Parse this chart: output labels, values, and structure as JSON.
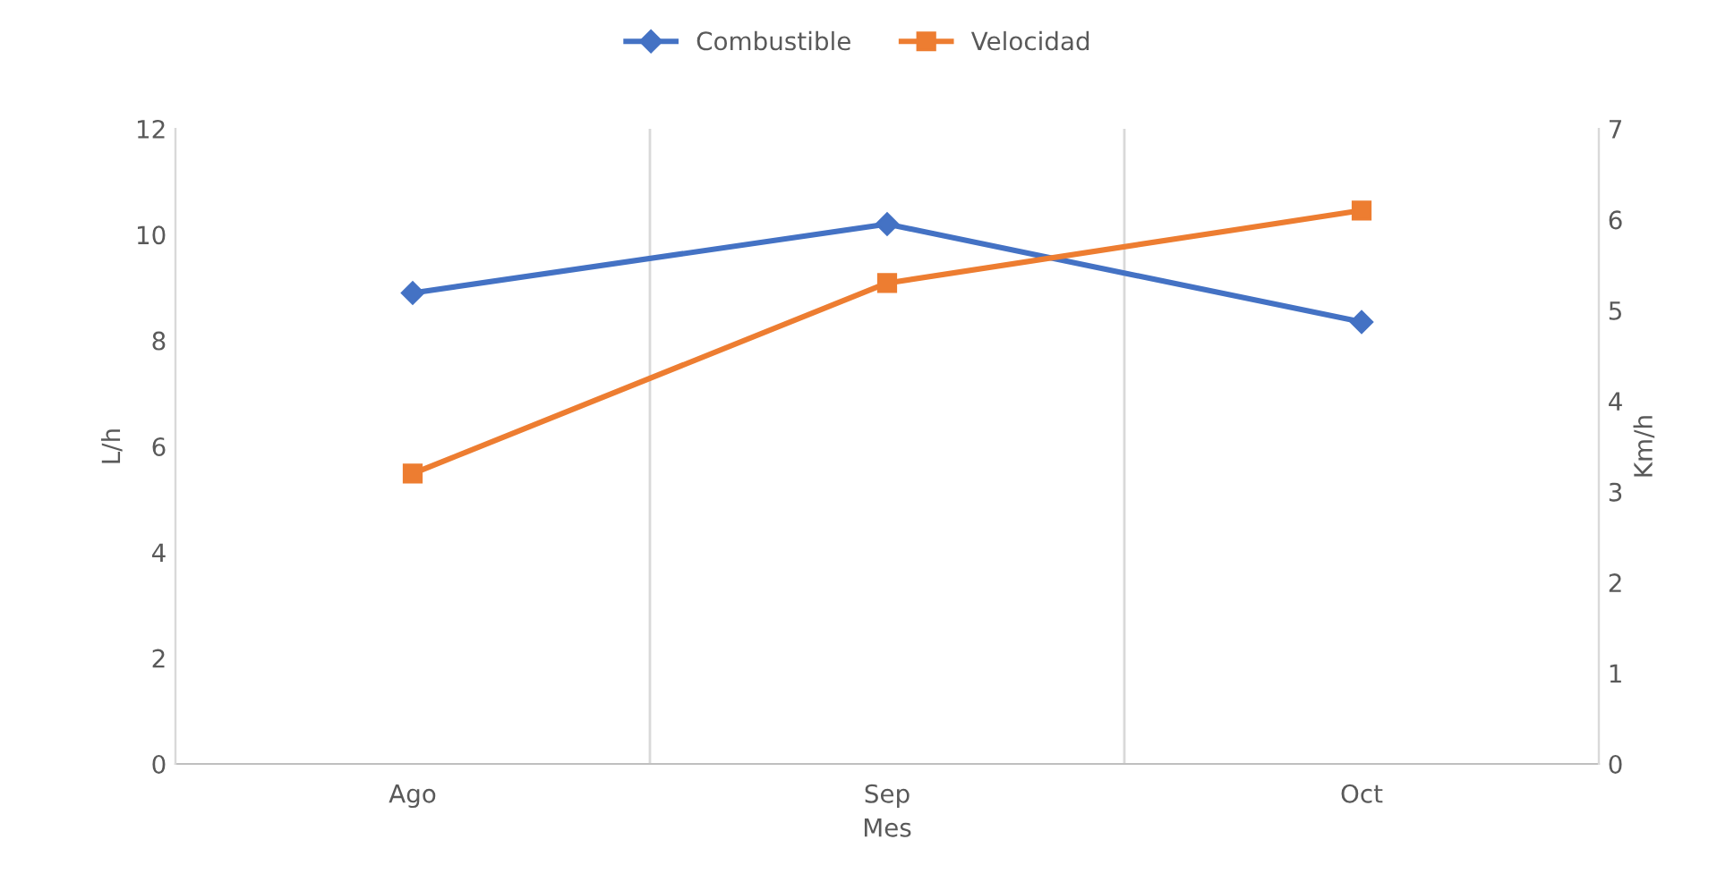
{
  "chart_data": {
    "type": "line",
    "xlabel": "Mes",
    "ylabel": "L/h",
    "y2label": "Km/h",
    "categories": [
      "Ago",
      "Sep",
      "Oct"
    ],
    "series": [
      {
        "name": "Combustible",
        "color": "#4472c4",
        "values": [
          8.9,
          10.2,
          8.35
        ],
        "marker": "diamond"
      },
      {
        "name": "Velocidad",
        "color": "#ed7d31",
        "values": [
          3.2,
          5.3,
          6.1
        ],
        "marker": "square",
        "axis": "y2"
      }
    ],
    "ylim": [
      0,
      12
    ],
    "yticks": [
      0,
      2,
      4,
      6,
      8,
      10,
      12
    ],
    "y2lim": [
      0,
      7
    ],
    "y2ticks": [
      0,
      1,
      2,
      3,
      4,
      5,
      6,
      7
    ],
    "grid": "x",
    "legend": "top",
    "line_style": "solid"
  }
}
